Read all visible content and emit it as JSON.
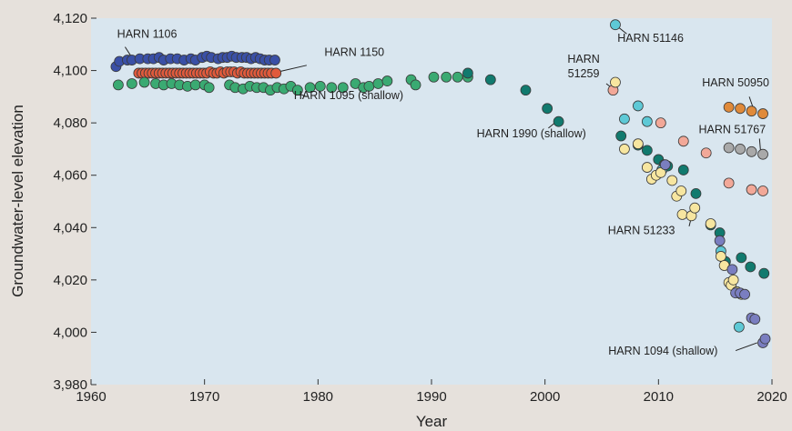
{
  "chart_data": {
    "type": "scatter",
    "title": "",
    "xlabel": "Year",
    "ylabel": "Groundwater-level elevation",
    "xlim": [
      1960,
      2020
    ],
    "ylim": [
      3980,
      4120
    ],
    "x_ticks": [
      1960,
      1970,
      1980,
      1990,
      2000,
      2010,
      2020
    ],
    "x_tick_labels": [
      "1960",
      "1970",
      "1980",
      "1990",
      "2000",
      "2010",
      "2020"
    ],
    "y_ticks": [
      3980,
      4000,
      4020,
      4040,
      4060,
      4080,
      4100,
      4120
    ],
    "y_tick_labels": [
      "3,980",
      "4,000",
      "4,020",
      "4,040",
      "4,060",
      "4,080",
      "4,100",
      "4,120"
    ],
    "grid": false,
    "legend": "none",
    "background": "#e6e1dc",
    "plot_background": "#d9e6ef",
    "series": [
      {
        "name": "HARN 1106",
        "color": "#3a50a6",
        "points": [
          [
            1962.2,
            4101.5
          ],
          [
            1962.5,
            4103.5
          ],
          [
            1963.2,
            4104
          ],
          [
            1963.6,
            4104
          ],
          [
            1964.3,
            4104.5
          ],
          [
            1965.0,
            4104.5
          ],
          [
            1965.5,
            4104.5
          ],
          [
            1966.0,
            4105
          ],
          [
            1966.4,
            4104
          ],
          [
            1967.0,
            4104.5
          ],
          [
            1967.6,
            4104.5
          ],
          [
            1968.2,
            4104
          ],
          [
            1968.8,
            4104.5
          ],
          [
            1969.2,
            4104
          ],
          [
            1969.8,
            4105
          ],
          [
            1970.2,
            4105.5
          ],
          [
            1970.6,
            4105
          ],
          [
            1971.2,
            4104.5
          ],
          [
            1971.6,
            4105
          ],
          [
            1972.0,
            4105
          ],
          [
            1972.4,
            4105.5
          ],
          [
            1972.8,
            4105
          ],
          [
            1973.3,
            4105
          ],
          [
            1973.7,
            4105
          ],
          [
            1974.1,
            4104.5
          ],
          [
            1974.5,
            4105
          ],
          [
            1974.9,
            4104.5
          ],
          [
            1975.3,
            4104
          ],
          [
            1975.7,
            4104
          ],
          [
            1976.2,
            4104
          ]
        ]
      },
      {
        "name": "HARN 1150",
        "color": "#e05a3c",
        "points": [
          [
            1964.2,
            4099
          ],
          [
            1964.5,
            4099
          ],
          [
            1964.8,
            4099
          ],
          [
            1965.1,
            4099
          ],
          [
            1965.4,
            4099
          ],
          [
            1965.7,
            4099
          ],
          [
            1966.0,
            4099
          ],
          [
            1966.3,
            4099
          ],
          [
            1966.6,
            4099
          ],
          [
            1966.9,
            4099
          ],
          [
            1967.2,
            4099
          ],
          [
            1967.5,
            4099
          ],
          [
            1967.8,
            4099
          ],
          [
            1968.1,
            4099
          ],
          [
            1968.4,
            4099
          ],
          [
            1968.7,
            4099
          ],
          [
            1969.0,
            4099
          ],
          [
            1969.3,
            4099
          ],
          [
            1969.6,
            4099
          ],
          [
            1969.9,
            4099
          ],
          [
            1970.2,
            4099
          ],
          [
            1970.5,
            4099.5
          ],
          [
            1970.8,
            4099
          ],
          [
            1971.1,
            4099
          ],
          [
            1971.4,
            4099.5
          ],
          [
            1971.7,
            4099
          ],
          [
            1972.0,
            4099.5
          ],
          [
            1972.3,
            4099.5
          ],
          [
            1972.6,
            4099.5
          ],
          [
            1972.9,
            4099
          ],
          [
            1973.2,
            4099.5
          ],
          [
            1973.5,
            4099
          ],
          [
            1973.8,
            4099
          ],
          [
            1974.1,
            4099
          ],
          [
            1974.4,
            4099
          ],
          [
            1974.7,
            4099
          ],
          [
            1975.0,
            4099
          ],
          [
            1975.3,
            4099
          ],
          [
            1975.6,
            4099
          ],
          [
            1975.9,
            4099
          ],
          [
            1976.3,
            4099
          ]
        ]
      },
      {
        "name": "HARN 1095 (shallow)",
        "color": "#3aaa72",
        "points": [
          [
            1962.4,
            4094.5
          ],
          [
            1963.6,
            4095
          ],
          [
            1964.7,
            4095.5
          ],
          [
            1965.7,
            4095
          ],
          [
            1966.4,
            4094.5
          ],
          [
            1967.1,
            4095
          ],
          [
            1967.8,
            4094.5
          ],
          [
            1968.5,
            4094
          ],
          [
            1969.2,
            4094.5
          ],
          [
            1970.0,
            4094.5
          ],
          [
            1970.4,
            4093.5
          ],
          [
            1972.2,
            4094.5
          ],
          [
            1972.7,
            4093.5
          ],
          [
            1973.4,
            4093
          ],
          [
            1974.0,
            4094
          ],
          [
            1974.6,
            4093.5
          ],
          [
            1975.2,
            4093.5
          ],
          [
            1975.8,
            4092.5
          ],
          [
            1976.4,
            4093.5
          ],
          [
            1977.0,
            4093
          ],
          [
            1977.6,
            4094
          ],
          [
            1978.2,
            4092.5
          ],
          [
            1979.3,
            4093.5
          ],
          [
            1980.2,
            4094
          ],
          [
            1981.2,
            4093.5
          ],
          [
            1982.2,
            4093.5
          ],
          [
            1983.3,
            4095
          ],
          [
            1984.0,
            4093.5
          ],
          [
            1984.5,
            4094
          ],
          [
            1985.3,
            4095
          ],
          [
            1986.1,
            4096
          ],
          [
            1988.2,
            4096.5
          ],
          [
            1988.6,
            4094.5
          ],
          [
            1990.2,
            4097.5
          ],
          [
            1991.3,
            4097.5
          ],
          [
            1992.3,
            4097.5
          ],
          [
            1993.2,
            4097.5
          ]
        ]
      },
      {
        "name": "HARN 1990 (shallow)",
        "color": "#117a6e",
        "points": [
          [
            1993.2,
            4099
          ],
          [
            1995.2,
            4096.5
          ],
          [
            1998.3,
            4092.5
          ],
          [
            2000.2,
            4085.5
          ],
          [
            2001.2,
            4080.5
          ],
          [
            2006.7,
            4075
          ],
          [
            2008.2,
            4071.5
          ],
          [
            2009.0,
            4069.5
          ],
          [
            2010.0,
            4066
          ],
          [
            2010.5,
            4064
          ],
          [
            2010.8,
            4063.5
          ],
          [
            2012.2,
            4062
          ],
          [
            2013.3,
            4053
          ],
          [
            2014.6,
            4041
          ],
          [
            2015.4,
            4038
          ],
          [
            2015.9,
            4027
          ],
          [
            2017.3,
            4028.5
          ],
          [
            2018.1,
            4025
          ],
          [
            2019.3,
            4022.5
          ]
        ]
      },
      {
        "name": "HARN 51146",
        "color": "#5ec9d6",
        "points": [
          [
            2006.2,
            4117.5
          ],
          [
            2007.0,
            4081.5
          ],
          [
            2008.2,
            4086.5
          ],
          [
            2009.0,
            4080.5
          ],
          [
            2010.3,
            4062
          ],
          [
            2015.5,
            4031
          ],
          [
            2017.1,
            4002
          ]
        ]
      },
      {
        "name": "HARN 51259",
        "color": "#f2a898",
        "points": [
          [
            2006.0,
            4092.5
          ],
          [
            2010.2,
            4080
          ],
          [
            2012.2,
            4073
          ],
          [
            2014.2,
            4068.5
          ],
          [
            2016.2,
            4057
          ],
          [
            2018.2,
            4054.5
          ],
          [
            2019.2,
            4054
          ]
        ]
      },
      {
        "name": "HARN 50950",
        "color": "#e08a3a",
        "points": [
          [
            2016.2,
            4086
          ],
          [
            2017.2,
            4085.5
          ],
          [
            2018.2,
            4084.5
          ],
          [
            2019.2,
            4083.5
          ]
        ]
      },
      {
        "name": "HARN 51767",
        "color": "#a9a9a9",
        "points": [
          [
            2016.2,
            4070.5
          ],
          [
            2017.2,
            4070
          ],
          [
            2018.2,
            4069
          ],
          [
            2019.2,
            4068
          ]
        ]
      },
      {
        "name": "HARN 51233",
        "color": "#f7e6a0",
        "points": [
          [
            2006.2,
            4095.5
          ],
          [
            2007.0,
            4070
          ],
          [
            2008.2,
            4072
          ],
          [
            2009.0,
            4063
          ],
          [
            2009.4,
            4058.5
          ],
          [
            2009.8,
            4060
          ],
          [
            2010.2,
            4061
          ],
          [
            2011.2,
            4058
          ],
          [
            2011.6,
            4052
          ],
          [
            2012.0,
            4054
          ],
          [
            2012.1,
            4045
          ],
          [
            2012.9,
            4044.5
          ],
          [
            2013.2,
            4047.5
          ],
          [
            2014.6,
            4041.5
          ],
          [
            2015.5,
            4029
          ],
          [
            2015.8,
            4025.5
          ],
          [
            2016.2,
            4019
          ],
          [
            2016.4,
            4018
          ],
          [
            2016.6,
            4020
          ],
          [
            2016.9,
            4015.5
          ],
          [
            2017.3,
            4014.5
          ]
        ]
      },
      {
        "name": "HARN 1094 (shallow)",
        "color": "#7a7ec0",
        "points": [
          [
            2010.6,
            4064
          ],
          [
            2015.4,
            4035
          ],
          [
            2016.5,
            4024
          ],
          [
            2016.8,
            4015
          ],
          [
            2017.2,
            4015
          ],
          [
            2017.6,
            4014.5
          ],
          [
            2018.2,
            4005.5
          ],
          [
            2018.5,
            4005
          ],
          [
            2019.2,
            3996
          ],
          [
            2019.4,
            3997.5
          ]
        ]
      }
    ],
    "annotations": [
      {
        "text": "HARN 1106",
        "x": 1962.3,
        "y": 4112.5,
        "anchor": "start"
      },
      {
        "text": "HARN 1150",
        "x": 1983.2,
        "y": 4105.5,
        "anchor": "middle"
      },
      {
        "text": "HARN 1095 (shallow)",
        "x": 1982.7,
        "y": 4089,
        "anchor": "middle"
      },
      {
        "text": "HARN 1990 (shallow)",
        "x": 1998.8,
        "y": 4074.5,
        "anchor": "middle"
      },
      {
        "text": "HARN 51146",
        "x": 2009.3,
        "y": 4111,
        "anchor": "middle"
      },
      {
        "text": "HARN",
        "x": 2003.4,
        "y": 4103,
        "anchor": "middle"
      },
      {
        "text": "51259",
        "x": 2003.4,
        "y": 4097.5,
        "anchor": "middle"
      },
      {
        "text": "HARN 50950",
        "x": 2016.8,
        "y": 4094,
        "anchor": "middle"
      },
      {
        "text": "HARN 51767",
        "x": 2016.5,
        "y": 4076,
        "anchor": "middle"
      },
      {
        "text": "HARN 51233",
        "x": 2008.5,
        "y": 4037.5,
        "anchor": "middle"
      },
      {
        "text": "HARN 1094 (shallow)",
        "x": 2010.4,
        "y": 3991.5,
        "anchor": "middle"
      }
    ],
    "leader_lines": [
      {
        "from": [
          1963.0,
          4109
        ],
        "to": [
          1963.6,
          4105
        ]
      },
      {
        "from": [
          1979.0,
          4102
        ],
        "to": [
          1976.5,
          4099.5
        ]
      },
      {
        "from": [
          1979.0,
          4090
        ],
        "to": [
          1977.5,
          4092.5
        ]
      },
      {
        "from": [
          2000.3,
          4078
        ],
        "to": [
          2001.0,
          4080.5
        ]
      },
      {
        "from": [
          2007.2,
          4114
        ],
        "to": [
          2006.4,
          4116.8
        ]
      },
      {
        "from": [
          2005.4,
          4095
        ],
        "to": [
          2006.0,
          4093
        ]
      },
      {
        "from": [
          2018.0,
          4090
        ],
        "to": [
          2018.4,
          4085
        ]
      },
      {
        "from": [
          2018.9,
          4074
        ],
        "to": [
          2019.0,
          4069
        ]
      },
      {
        "from": [
          2012.7,
          4040.5
        ],
        "to": [
          2012.9,
          4044
        ]
      },
      {
        "from": [
          2016.8,
          3993
        ],
        "to": [
          2018.7,
          3996
        ]
      }
    ]
  }
}
